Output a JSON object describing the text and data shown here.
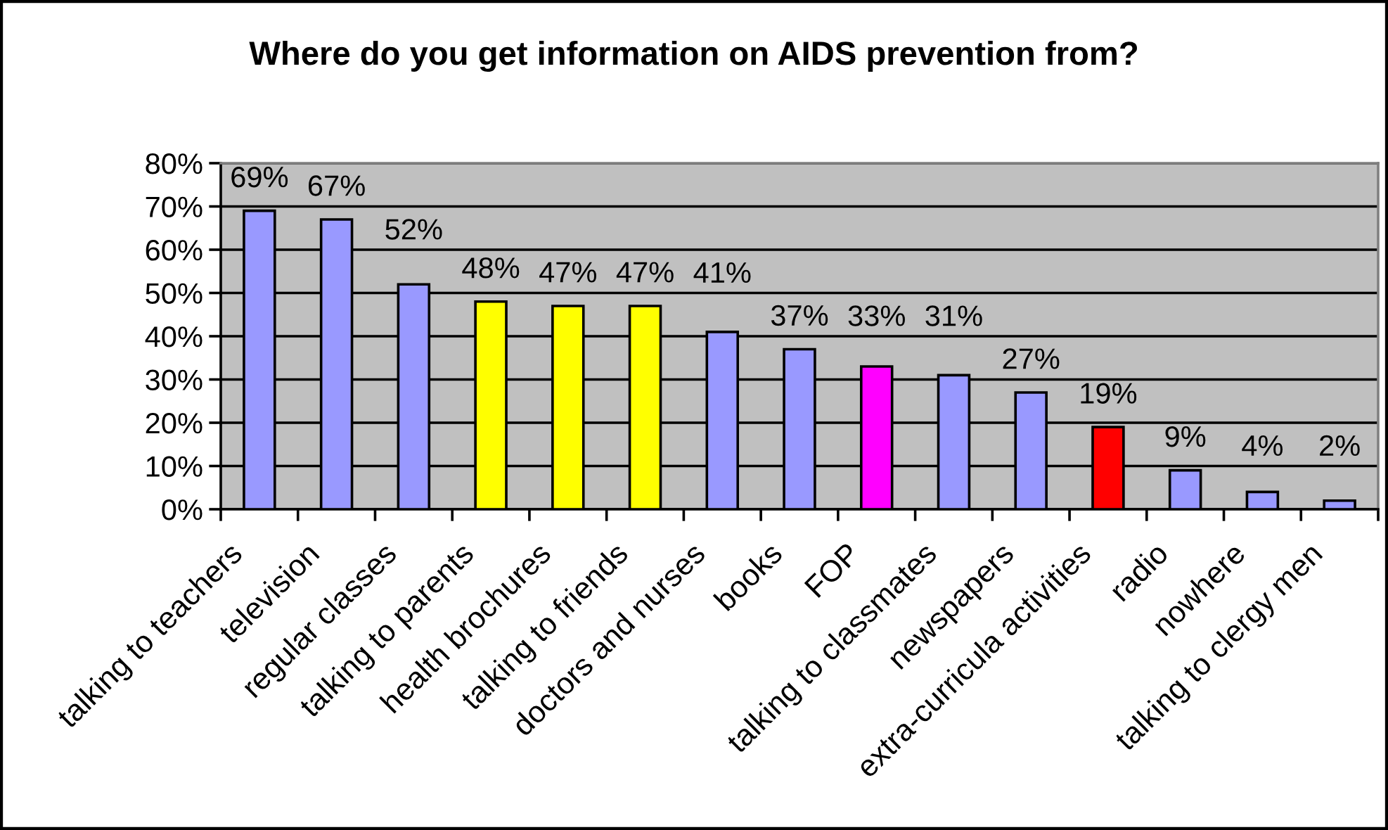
{
  "chart_data": {
    "type": "bar",
    "title": "Where do you get information on AIDS prevention from?",
    "categories": [
      "talking to teachers",
      "television",
      "regular classes",
      "talking to parents",
      "health brochures",
      "talking to friends",
      "doctors and nurses",
      "books",
      "FOP",
      "talking to classmates",
      "newspapers",
      "extra-curricula activities",
      "radio",
      "nowhere",
      "talking to clergy men"
    ],
    "values": [
      69,
      67,
      52,
      48,
      47,
      47,
      41,
      37,
      33,
      31,
      27,
      19,
      9,
      4,
      2
    ],
    "colors": [
      "#9999ff",
      "#9999ff",
      "#9999ff",
      "#ffff00",
      "#ffff00",
      "#ffff00",
      "#9999ff",
      "#9999ff",
      "#ff00ff",
      "#9999ff",
      "#9999ff",
      "#ff0000",
      "#9999ff",
      "#9999ff",
      "#9999ff"
    ],
    "value_labels": [
      "69%",
      "67%",
      "52%",
      "48%",
      "47%",
      "47%",
      "41%",
      "37%",
      "33%",
      "31%",
      "27%",
      "19%",
      "9%",
      "4%",
      "2%"
    ],
    "ylim": [
      0,
      80
    ],
    "yticks": [
      {
        "value": 0,
        "label": "0%"
      },
      {
        "value": 10,
        "label": "10%"
      },
      {
        "value": 20,
        "label": "20%"
      },
      {
        "value": 30,
        "label": "30%"
      },
      {
        "value": 40,
        "label": "40%"
      },
      {
        "value": 50,
        "label": "50%"
      },
      {
        "value": 60,
        "label": "60%"
      },
      {
        "value": 70,
        "label": "70%"
      },
      {
        "value": 80,
        "label": "80%"
      }
    ],
    "grid": "y"
  }
}
